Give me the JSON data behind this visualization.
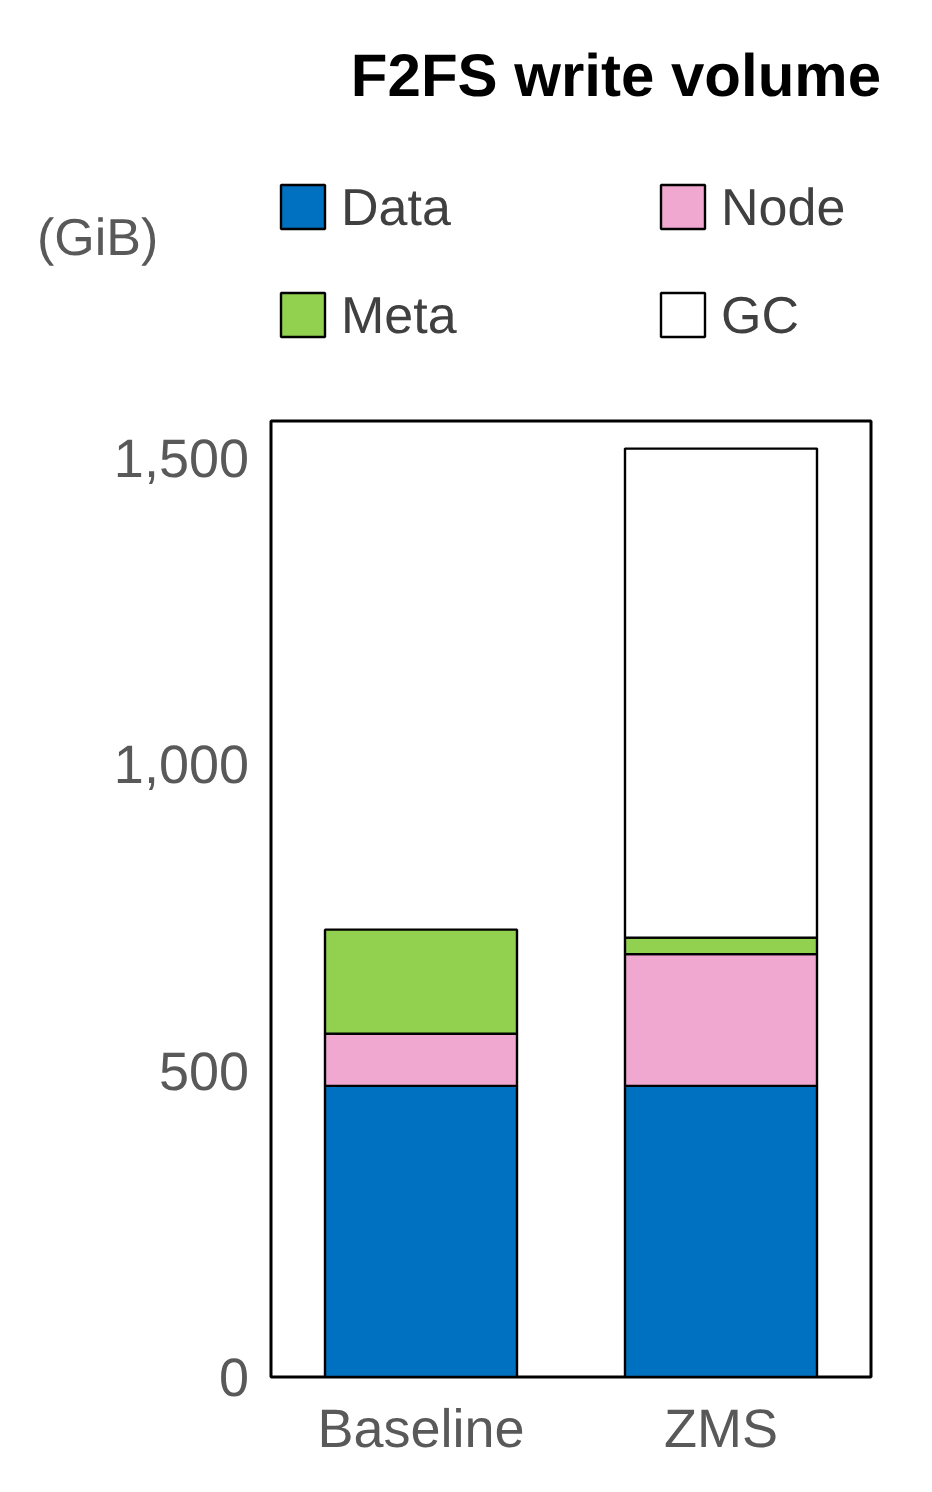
{
  "chart_data": {
    "type": "bar",
    "title": "F2FS write volume",
    "ylabel": "(GiB)",
    "categories": [
      "Baseline",
      "ZMS"
    ],
    "stacked": true,
    "series": [
      {
        "name": "Data",
        "color": "#0070c0",
        "values": [
          475,
          475
        ]
      },
      {
        "name": "Node",
        "color": "#f0a8d0",
        "values": [
          85,
          215
        ]
      },
      {
        "name": "Meta",
        "color": "#92d050",
        "values": [
          170,
          27
        ]
      },
      {
        "name": "GC",
        "color": "#ffffff",
        "values": [
          0,
          798
        ]
      }
    ],
    "ylim": [
      0,
      1560
    ],
    "yticks": [
      0,
      500,
      {
        "value": 1000,
        "label": "1,000"
      },
      {
        "value": 1500,
        "label": "1,500"
      }
    ],
    "grid": false,
    "legend": "top"
  }
}
